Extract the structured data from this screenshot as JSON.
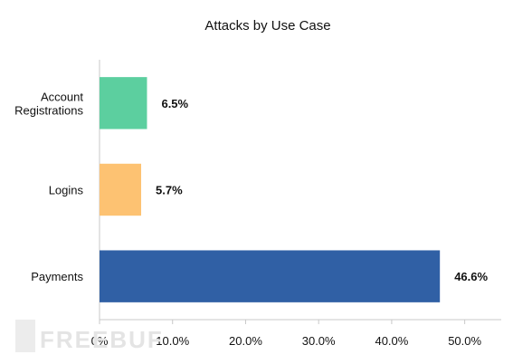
{
  "chart_data": {
    "type": "bar",
    "orientation": "horizontal",
    "title": "Attacks by Use Case",
    "categories": [
      "Account Registrations",
      "Logins",
      "Payments"
    ],
    "category_lines": [
      [
        "Account",
        "Registrations"
      ],
      [
        "Logins"
      ],
      [
        "Payments"
      ]
    ],
    "values": [
      6.5,
      5.7,
      46.6
    ],
    "value_labels": [
      "6.5%",
      "5.7%",
      "46.6%"
    ],
    "colors": [
      "#5ccf9f",
      "#fdc272",
      "#3060a5"
    ],
    "xlim": [
      0,
      55
    ],
    "xticks": [
      0,
      10,
      20,
      30,
      40,
      50
    ],
    "xtick_labels": [
      "0%",
      "10.0%",
      "20.0%",
      "30.0%",
      "40.0%",
      "50.0%"
    ],
    "xlabel": "",
    "ylabel": "",
    "grid": false,
    "legend": "none"
  },
  "watermark": "FREEBUF"
}
